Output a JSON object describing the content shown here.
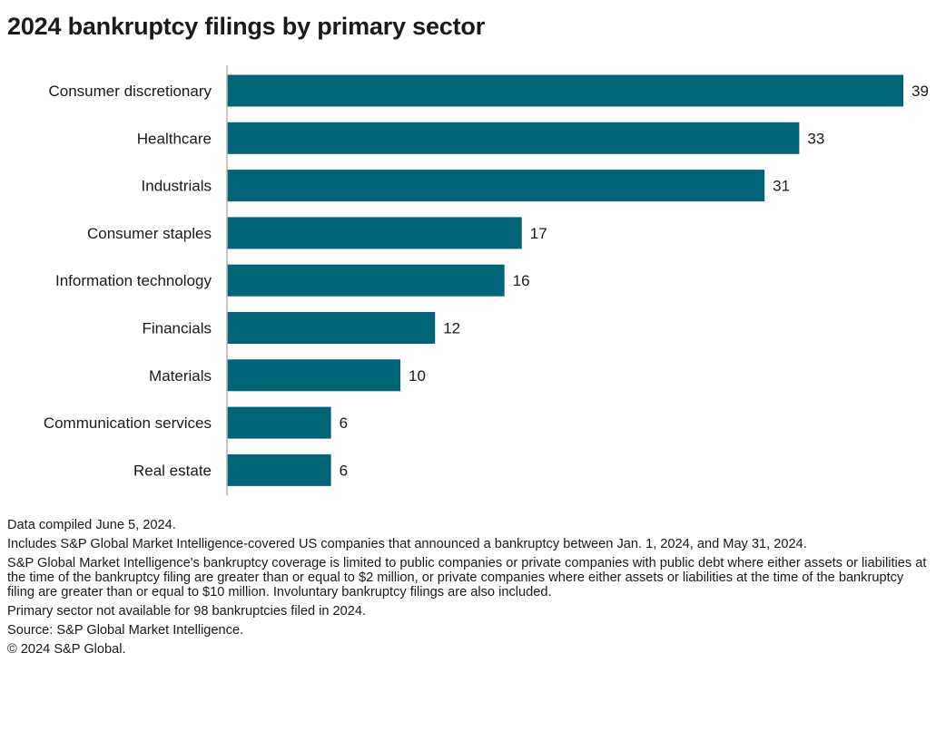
{
  "title": "2024 bankruptcy filings by primary sector",
  "chart_data": {
    "type": "bar",
    "orientation": "horizontal",
    "title": "2024 bankruptcy filings by primary sector",
    "categories": [
      "Consumer discretionary",
      "Healthcare",
      "Industrials",
      "Consumer staples",
      "Information technology",
      "Financials",
      "Materials",
      "Communication services",
      "Real estate"
    ],
    "values": [
      39,
      33,
      31,
      17,
      16,
      12,
      10,
      6,
      6
    ],
    "xlim": [
      0,
      39
    ],
    "bar_color": "#006479",
    "grid": false,
    "data_labels": true
  },
  "notes": [
    "Data compiled June 5, 2024.",
    "Includes S&P Global Market Intelligence-covered US companies that announced a bankruptcy between Jan. 1, 2024, and May 31, 2024.",
    "S&P Global Market Intelligence's bankruptcy coverage is limited to public companies or private companies with public debt where either assets or liabilities at the time of the bankruptcy filing are greater than or equal to $2 million, or private companies where either assets or liabilities at the time of the bankruptcy filing are greater than or equal to $10 million. Involuntary bankruptcy filings are also included.",
    "Primary sector not available for 98 bankruptcies filed in 2024.",
    "Source: S&P Global Market Intelligence.",
    "© 2024 S&P Global."
  ]
}
